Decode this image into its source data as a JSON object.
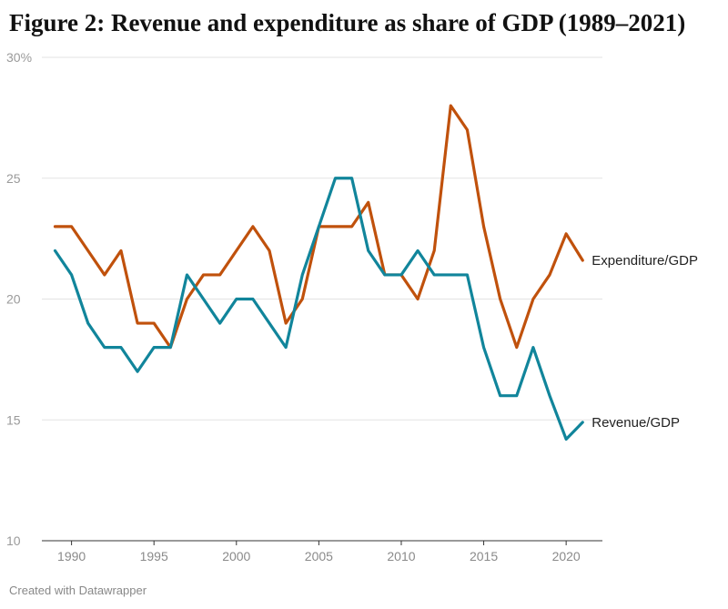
{
  "title": "Figure 2: Revenue and expenditure as share of GDP (1989–2021)",
  "footer": "Created with Datawrapper",
  "chart_data": {
    "type": "line",
    "title": "Figure 2: Revenue and expenditure as share of GDP (1989–2021)",
    "xlabel": "",
    "ylabel": "",
    "x": [
      1989,
      1990,
      1991,
      1992,
      1993,
      1994,
      1995,
      1996,
      1997,
      1998,
      1999,
      2000,
      2001,
      2002,
      2003,
      2004,
      2005,
      2006,
      2007,
      2008,
      2009,
      2010,
      2011,
      2012,
      2013,
      2014,
      2015,
      2016,
      2017,
      2018,
      2019,
      2020,
      2021
    ],
    "xlim": [
      1988.2,
      2022.2
    ],
    "ylim": [
      10,
      30
    ],
    "x_ticks": [
      1990,
      1995,
      2000,
      2005,
      2010,
      2015,
      2020
    ],
    "y_ticks": [
      10,
      15,
      20,
      25,
      30
    ],
    "y_tick_labels": [
      "10",
      "15",
      "20",
      "25",
      "30%"
    ],
    "grid": "horizontal",
    "legend": "direct labels at line ends",
    "series": [
      {
        "name": "Expenditure/GDP",
        "color": "#c0510c",
        "values": [
          23,
          23,
          22,
          21,
          22,
          19,
          19,
          18,
          20,
          21,
          21,
          22,
          23,
          22,
          19,
          20,
          23,
          23,
          23,
          24,
          21,
          21,
          20,
          22,
          28,
          27,
          23,
          20,
          18,
          20,
          21,
          22.7,
          21.6
        ]
      },
      {
        "name": "Revenue/GDP",
        "color": "#11859b",
        "values": [
          22,
          21,
          19,
          18,
          18,
          17,
          18,
          18,
          21,
          20,
          19,
          20,
          20,
          19,
          18,
          21,
          23,
          25,
          25,
          22,
          21,
          21,
          22,
          21,
          21,
          21,
          18,
          16,
          16,
          18,
          16,
          14.2,
          14.9
        ]
      }
    ]
  }
}
